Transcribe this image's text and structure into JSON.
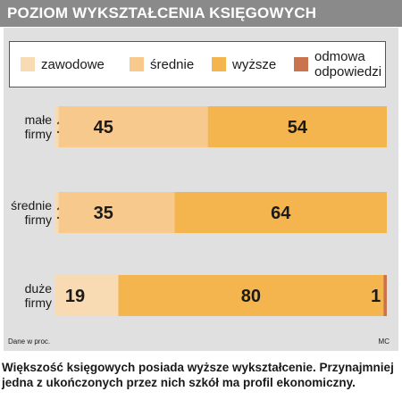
{
  "header": {
    "title": "POZIOM WYKSZTAŁCENIA KSIĘGOWYCH"
  },
  "colors": {
    "header_bg": "#8a8a8a",
    "panel_bg": "#e0e0e0",
    "zawodowe": "#f9dbb3",
    "srednie": "#f8c98d",
    "wyzsze": "#f5b54e",
    "odmowa": "#c9734f"
  },
  "chart_data": {
    "type": "bar",
    "orientation": "horizontal",
    "stacked": true,
    "unit": "proc.",
    "categories": [
      [
        "małe",
        "firmy"
      ],
      [
        "średnie",
        "firmy"
      ],
      [
        "duże",
        "firmy"
      ]
    ],
    "series": [
      {
        "name": "zawodowe",
        "values": [
          1,
          1,
          19
        ]
      },
      {
        "name": "średnie",
        "values": [
          45,
          35,
          0
        ]
      },
      {
        "name": "wyższe",
        "values": [
          54,
          64,
          80
        ]
      },
      {
        "name": "odmowa odpowiedzi",
        "values": [
          0,
          0,
          1
        ]
      }
    ],
    "xlim": [
      0,
      100
    ],
    "legend": "top",
    "grid": false
  },
  "legend": [
    {
      "key": "zawodowe",
      "lines": [
        "zawodowe"
      ]
    },
    {
      "key": "srednie",
      "lines": [
        "średnie"
      ]
    },
    {
      "key": "wyzsze",
      "lines": [
        "wyższe"
      ]
    },
    {
      "key": "odmowa",
      "lines": [
        "odmowa",
        "odpowiedzi"
      ]
    }
  ],
  "footer": {
    "source": "Dane w proc.",
    "author": "MC"
  },
  "caption": "Większość księgowych posiada wyższe wykształcenie. Przynajmniej jedna z ukończonych przez nich szkół ma profil ekonomiczny."
}
